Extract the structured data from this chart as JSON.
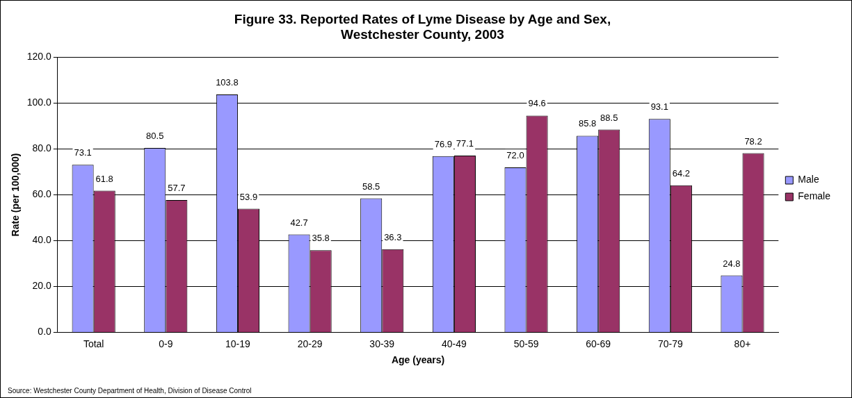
{
  "chart_data": {
    "type": "bar",
    "title": "Figure 33. Reported Rates of Lyme Disease by Age and Sex, Westchester County, 2003",
    "xlabel": "Age (years)",
    "ylabel": "Rate (per 100,000)",
    "categories": [
      "Total",
      "0-9",
      "10-19",
      "20-29",
      "30-39",
      "40-49",
      "50-59",
      "60-69",
      "70-79",
      "80+"
    ],
    "series": [
      {
        "name": "Male",
        "color": "#9999ff",
        "values": [
          73.1,
          80.5,
          103.8,
          42.7,
          58.5,
          76.9,
          72.0,
          85.8,
          93.1,
          24.8
        ],
        "value_labels": [
          "73.1",
          "80.5",
          "103.8",
          "42.7",
          "58.5",
          "76.9",
          "72.0",
          "85.8",
          "93.1",
          "24.8"
        ]
      },
      {
        "name": "Female",
        "color": "#993366",
        "values": [
          61.8,
          57.7,
          53.9,
          35.8,
          36.3,
          77.1,
          94.6,
          88.5,
          64.2,
          78.2
        ],
        "value_labels": [
          "61.8",
          "57.7",
          "53.9",
          "35.8",
          "36.3",
          "77.1",
          "94.6",
          "88.5",
          "64.2",
          "78.2"
        ]
      }
    ],
    "ylim": [
      0,
      120
    ],
    "yticks": [
      {
        "value": 0,
        "label": "0.0"
      },
      {
        "value": 20,
        "label": "20.0"
      },
      {
        "value": 40,
        "label": "40.0"
      },
      {
        "value": 60,
        "label": "60.0"
      },
      {
        "value": 80,
        "label": "80.0"
      },
      {
        "value": 100,
        "label": "100.0"
      },
      {
        "value": 120,
        "label": "120.0"
      }
    ],
    "grid": "y",
    "legend": "right",
    "annotations": [
      "Source: Westchester County Department of Health, Division of Disease Control"
    ]
  }
}
